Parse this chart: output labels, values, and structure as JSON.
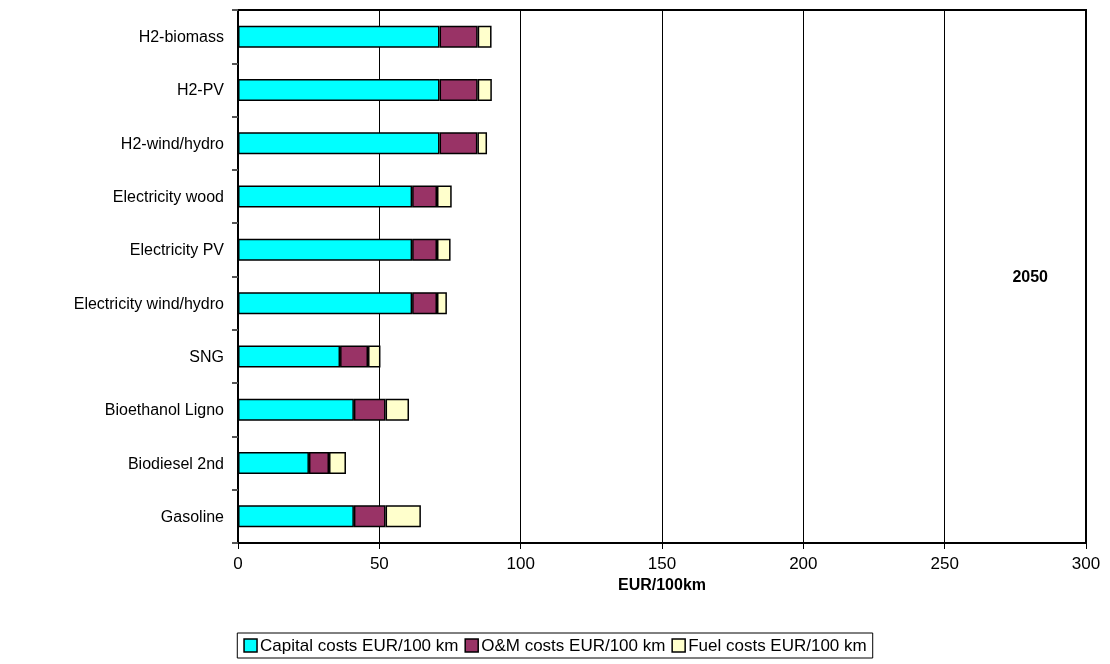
{
  "chart_data": {
    "type": "bar",
    "orientation": "horizontal",
    "stacked": true,
    "categories": [
      "H2-biomass",
      "H2-PV",
      "H2-wind/hydro",
      "Electricity wood",
      "Electricity PV",
      "Electricity wind/hydro",
      "SNG",
      "Bioethanol Ligno",
      "Biodiesel 2nd",
      "Gasoline"
    ],
    "series": [
      {
        "name": "Capital costs EUR/100 km",
        "color": "#00ffff",
        "values": [
          71.3,
          71.3,
          71.3,
          61.6,
          61.6,
          61.6,
          36.1,
          41.0,
          25.1,
          41.0
        ]
      },
      {
        "name": "O&M costs EUR/100 km",
        "color": "#993366",
        "values": [
          13.5,
          13.5,
          13.4,
          8.8,
          8.8,
          8.8,
          9.9,
          11.2,
          7.1,
          11.2
        ]
      },
      {
        "name": "Fuel costs EUR/100 km",
        "color": "#ffffcc",
        "values": [
          4.9,
          5.0,
          3.4,
          5.2,
          4.8,
          3.5,
          4.4,
          8.3,
          6.0,
          12.5
        ]
      }
    ],
    "xlabel": "EUR/100km",
    "xlim": [
      0,
      300
    ],
    "xticks": [
      0,
      50,
      100,
      150,
      200,
      250,
      300
    ],
    "annotations": [
      "2050"
    ],
    "grid": "x",
    "legend": "bottom"
  }
}
